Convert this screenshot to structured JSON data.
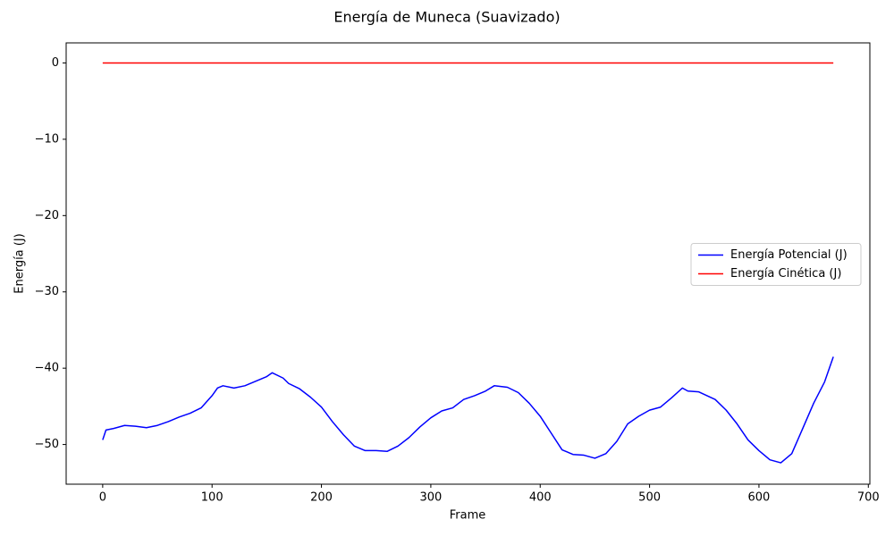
{
  "chart_data": {
    "type": "line",
    "title": "Energía de Muneca (Suavizado)",
    "x_label": "Frame",
    "y_label": "Energía (J)",
    "x": [
      0,
      3,
      10,
      20,
      30,
      40,
      50,
      60,
      70,
      80,
      90,
      100,
      105,
      110,
      120,
      130,
      140,
      150,
      155,
      165,
      170,
      180,
      190,
      200,
      210,
      220,
      230,
      240,
      250,
      260,
      270,
      280,
      290,
      300,
      310,
      320,
      330,
      340,
      350,
      358,
      370,
      380,
      390,
      400,
      410,
      420,
      430,
      440,
      450,
      460,
      470,
      480,
      490,
      500,
      510,
      520,
      530,
      535,
      545,
      560,
      570,
      580,
      590,
      600,
      610,
      620,
      630,
      640,
      650,
      660,
      668
    ],
    "series": [
      {
        "name": "Energía Potencial (J)",
        "color": "#0000ff",
        "values": [
          -49.4,
          -48.1,
          -47.9,
          -47.5,
          -47.6,
          -47.8,
          -47.5,
          -47.0,
          -46.4,
          -45.9,
          -45.2,
          -43.6,
          -42.6,
          -42.3,
          -42.6,
          -42.3,
          -41.7,
          -41.1,
          -40.6,
          -41.3,
          -42.0,
          -42.7,
          -43.8,
          -45.1,
          -47.0,
          -48.7,
          -50.2,
          -50.8,
          -50.8,
          -50.9,
          -50.2,
          -49.1,
          -47.7,
          -46.5,
          -45.6,
          -45.2,
          -44.1,
          -43.6,
          -43.0,
          -42.3,
          -42.5,
          -43.2,
          -44.6,
          -46.3,
          -48.5,
          -50.7,
          -51.3,
          -51.4,
          -51.8,
          -51.2,
          -49.6,
          -47.3,
          -46.3,
          -45.5,
          -45.1,
          -43.9,
          -42.6,
          -43.0,
          -43.1,
          -44.1,
          -45.5,
          -47.3,
          -49.4,
          -50.8,
          -52.0,
          -52.4,
          -51.2,
          -47.9,
          -44.6,
          -41.8,
          -38.5
        ]
      },
      {
        "name": "Energía Cinética (J)",
        "color": "#ff0000",
        "values": [
          0,
          0,
          0,
          0,
          0,
          0,
          0,
          0,
          0,
          0,
          0,
          0,
          0,
          0,
          0,
          0,
          0,
          0,
          0,
          0,
          0,
          0,
          0,
          0,
          0,
          0,
          0,
          0,
          0,
          0,
          0,
          0,
          0,
          0,
          0,
          0,
          0,
          0,
          0,
          0,
          0,
          0,
          0,
          0,
          0,
          0,
          0,
          0,
          0,
          0,
          0,
          0,
          0,
          0,
          0,
          0,
          0,
          0,
          0,
          0,
          0,
          0,
          0,
          0,
          0,
          0,
          0,
          0,
          0,
          0,
          0
        ]
      }
    ],
    "xlim": [
      -33.4,
      701.4
    ],
    "xticks": [
      0,
      100,
      200,
      300,
      400,
      500,
      600,
      700
    ],
    "ylim": [
      -55.2,
      2.63
    ],
    "yticks": [
      {
        "value": -50,
        "label": "−50"
      },
      {
        "value": -40,
        "label": "−40"
      },
      {
        "value": -30,
        "label": "−30"
      },
      {
        "value": -20,
        "label": "−20"
      },
      {
        "value": -10,
        "label": "−10"
      },
      0
    ],
    "legend": "center right"
  }
}
